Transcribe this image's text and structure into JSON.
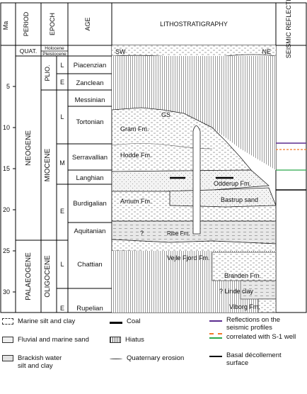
{
  "header": {
    "ma": "Ma",
    "period": "PERIOD",
    "epoch": "EPOCH",
    "age": "AGE",
    "litho": "LITHOSTRATIGRAPHY",
    "seismic": "SEISMIC REFLECTION"
  },
  "periods": {
    "quat": "QUAT.",
    "neogene": "NEOGENE",
    "palaeogene": "PALAEOGENE"
  },
  "epochs": {
    "holocene": "Holocene",
    "pleistocene": "Pleistocene",
    "pliocene": "PLIO.",
    "miocene": "MIOCENE",
    "oligocene": "OLIGOCENE"
  },
  "sub_epochs": {
    "pliocene_late": "L",
    "pliocene_early": "E",
    "miocene_late": "L",
    "miocene_middle": "M",
    "miocene_early": "E",
    "oligocene_late": "L",
    "oligocene_early": "E"
  },
  "ages": [
    "Piacenzian",
    "Zanclean",
    "Messinian",
    "Tortonian",
    "Serravallian",
    "Langhian",
    "Burdigalian",
    "Aquitanian",
    "Chattian",
    "Rupelian"
  ],
  "ma_ticks": [
    5,
    10,
    15,
    20,
    25,
    30
  ],
  "directions": {
    "left": "SW",
    "right": "NE"
  },
  "formations": {
    "gs": "GS",
    "gram": "Gram Fm.",
    "hodde": "Hodde Fm.",
    "odderup": "Odderup Fm.",
    "bastrup": "Bastrup sand",
    "arnum": "Arnum Fm.",
    "ribe": "Ribe Fm.",
    "question": "?",
    "vejle": "Vejle Fjord Fm.",
    "branden": "Branden Fm.",
    "linde": "? Linde clay",
    "viborg": "Viborg Fm."
  },
  "seismic_colors": {
    "purple": "#5b2c8f",
    "orange": "#f07a2a",
    "green": "#2aa84a",
    "black": "#000000"
  },
  "legend": {
    "marine_silt_clay": "Marine silt and clay",
    "fluvial_marine_sand": "Fluvial and marine sand",
    "brackish": "Brackish water\nsilt and clay",
    "coal": "Coal",
    "hiatus": "Hiatus",
    "quaternary_erosion": "Quaternary erosion",
    "reflections": "Reflections on the\nseismic profiles",
    "correlated": "correlated with S-1 well",
    "basal": "Basal décollement\nsurface"
  }
}
